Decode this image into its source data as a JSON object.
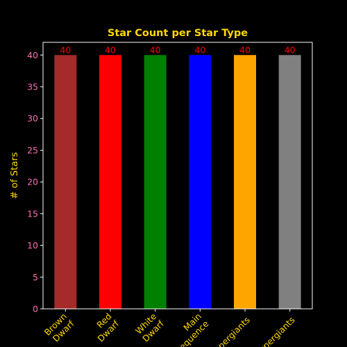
{
  "chart_data": {
    "type": "bar",
    "title": "Star Count per Star Type",
    "xlabel": "",
    "ylabel": "# of Stars",
    "categories": [
      [
        "Brown",
        "Dwarf"
      ],
      [
        "Red",
        "Dwarf"
      ],
      [
        "White",
        "Dwarf"
      ],
      [
        "Main",
        "Sequence"
      ],
      [
        "Supergiants"
      ],
      [
        "Hypergiants"
      ]
    ],
    "values": [
      40,
      40,
      40,
      40,
      40,
      40
    ],
    "data_labels": [
      "40",
      "40",
      "40",
      "40",
      "40",
      "40"
    ],
    "bar_colors": [
      "#a52a2a",
      "#ff0000",
      "#008000",
      "#0000ff",
      "#ffa500",
      "#808080"
    ],
    "ylim": [
      0,
      42
    ],
    "yticks": [
      0,
      5,
      10,
      15,
      20,
      25,
      30,
      35,
      40
    ],
    "grid": false,
    "legend": "none",
    "colors": {
      "background": "#000000",
      "axes": "#ffffff",
      "title": "#ffd700",
      "ylabel": "#ffd700",
      "xtick_labels": "#ffd700",
      "ytick_labels": "#ff69b4",
      "data_labels": "#ff0000"
    }
  }
}
